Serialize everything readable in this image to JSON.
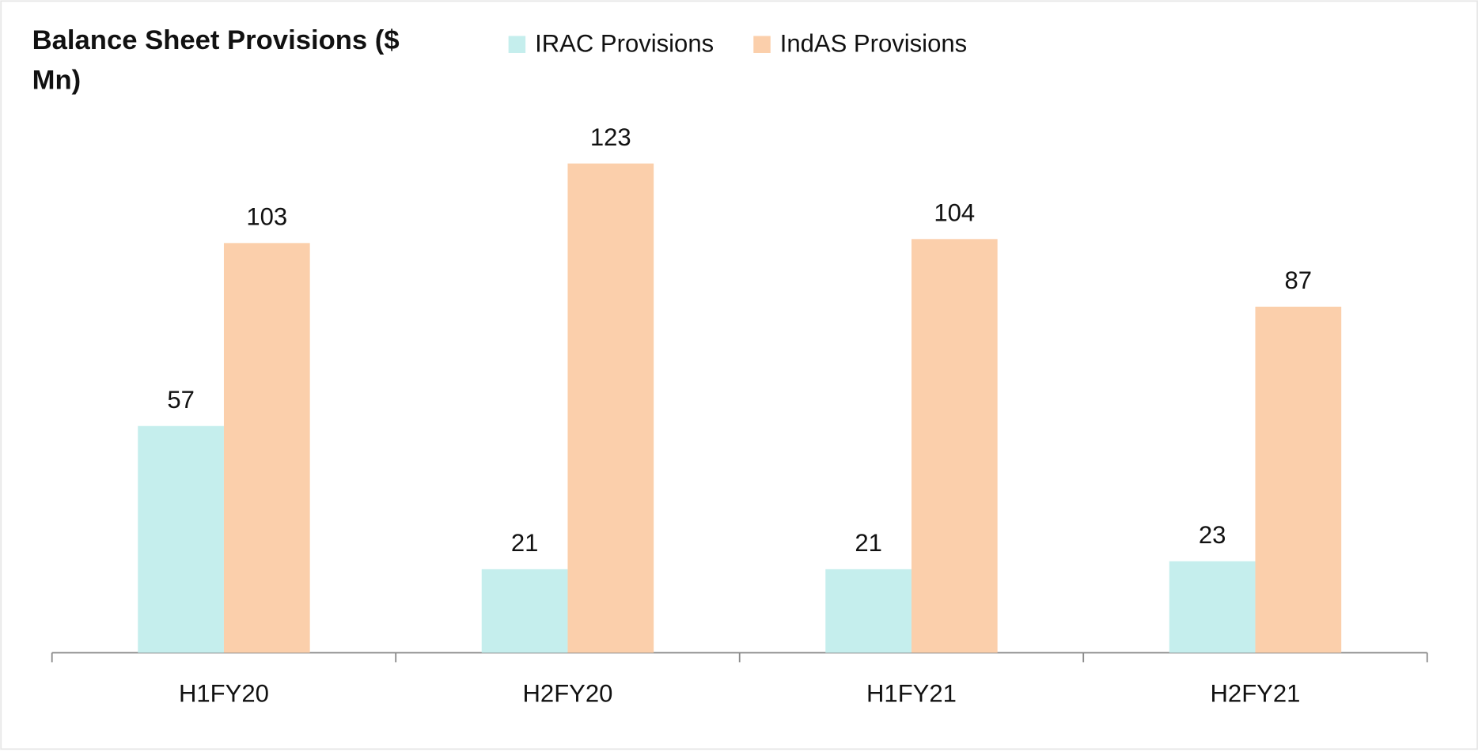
{
  "chart_data": {
    "type": "bar",
    "title": "Balance Sheet Provisions ($ Mn)",
    "categories": [
      "H1FY20",
      "H2FY20",
      "H1FY21",
      "H2FY21"
    ],
    "series": [
      {
        "name": "IRAC Provisions",
        "color": "#c5eeed",
        "values": [
          57,
          21,
          21,
          23
        ]
      },
      {
        "name": "IndAS Provisions",
        "color": "#fbcfab",
        "values": [
          103,
          123,
          104,
          87
        ]
      }
    ],
    "legend": "top"
  }
}
